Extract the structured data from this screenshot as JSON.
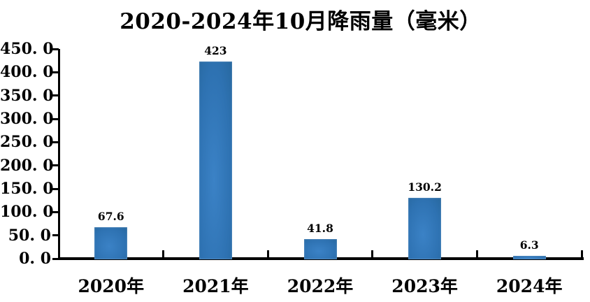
{
  "chart_data": {
    "type": "bar",
    "title": "2020-2024年10月降雨量（毫米）",
    "categories": [
      "2020年",
      "2021年",
      "2022年",
      "2023年",
      "2024年"
    ],
    "values": [
      67.6,
      423,
      41.8,
      130.2,
      6.3
    ],
    "data_labels": [
      "67.6",
      "423",
      "41.8",
      "130.2",
      "6.3"
    ],
    "y_ticks": [
      "450. 0",
      "400. 0",
      "350. 0",
      "300. 0",
      "250. 0",
      "200. 0",
      "150. 0",
      "100. 0",
      "50. 0",
      "0. 0"
    ],
    "y_tick_values": [
      450,
      400,
      350,
      300,
      250,
      200,
      150,
      100,
      50,
      0
    ],
    "ylim": [
      0,
      450
    ],
    "y_tick_step": 50,
    "xlabel": "",
    "ylabel": "",
    "grid": false,
    "legend": "none",
    "bar_color": "#2e72b2",
    "bar_color_light": "#3b82c6",
    "bar_color_dark": "#27689f",
    "axis_color": "#000000",
    "text_color": "#000000",
    "background_color": "#ffffff"
  }
}
